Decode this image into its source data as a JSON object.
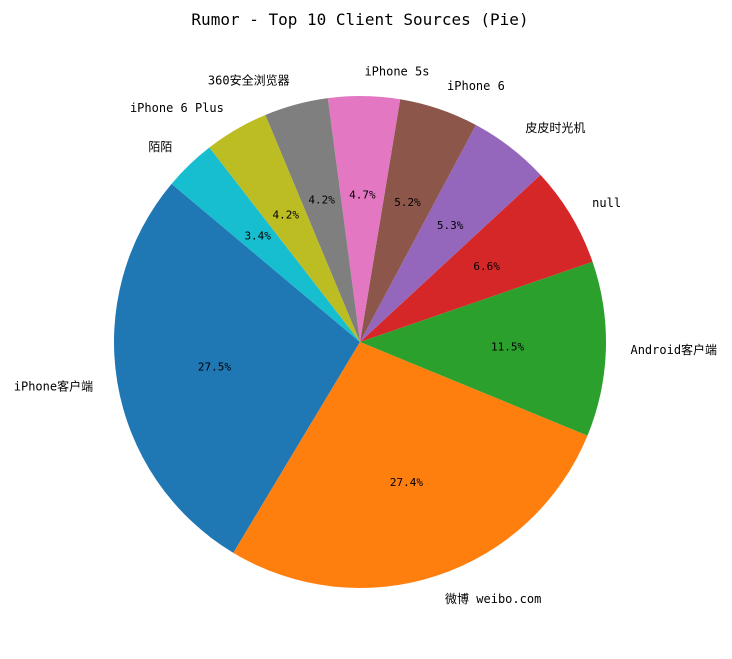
{
  "chart_data": {
    "type": "pie",
    "title": "Rumor - Top 10 Client Sources (Pie)",
    "slices": [
      {
        "label": "iPhone客户端",
        "value": 27.5,
        "pct_label": "27.5%",
        "color": "#1f77b4"
      },
      {
        "label": "微博 weibo.com",
        "value": 27.4,
        "pct_label": "27.4%",
        "color": "#ff7f0e"
      },
      {
        "label": "Android客户端",
        "value": 11.5,
        "pct_label": "11.5%",
        "color": "#2ca02c"
      },
      {
        "label": "null",
        "value": 6.6,
        "pct_label": "6.6%",
        "color": "#d62728"
      },
      {
        "label": "皮皮时光机",
        "value": 5.3,
        "pct_label": "5.3%",
        "color": "#9467bd"
      },
      {
        "label": "iPhone 6",
        "value": 5.2,
        "pct_label": "5.2%",
        "color": "#8c564b"
      },
      {
        "label": "iPhone 5s",
        "value": 4.7,
        "pct_label": "4.7%",
        "color": "#e377c2"
      },
      {
        "label": "360安全浏览器",
        "value": 4.2,
        "pct_label": "4.2%",
        "color": "#7f7f7f"
      },
      {
        "label": "iPhone 6 Plus",
        "value": 4.2,
        "pct_label": "4.2%",
        "color": "#bcbd22"
      },
      {
        "label": "陌陌",
        "value": 3.4,
        "pct_label": "3.4%",
        "color": "#17becf"
      }
    ]
  }
}
